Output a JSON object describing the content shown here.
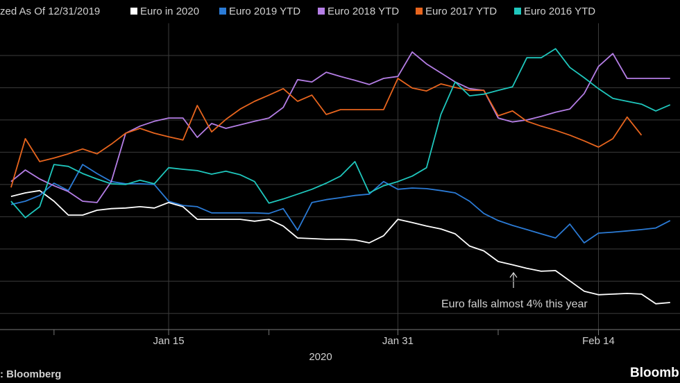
{
  "chart_data": {
    "type": "line",
    "subtitle": "zed As Of 12/31/2019",
    "xlabel": "2020",
    "annotation": "Euro falls almost 4% this year",
    "source": ": Bloomberg",
    "brand": "Bloomb",
    "grid": true,
    "x": [
      4,
      5,
      6,
      7,
      8,
      9,
      10,
      11,
      12,
      13,
      14,
      15,
      16,
      17,
      18,
      19,
      20,
      21,
      22,
      23,
      24,
      25,
      26,
      27,
      28,
      29,
      30,
      31,
      32,
      33,
      34,
      35,
      36,
      37,
      38,
      39,
      40,
      41,
      42,
      43,
      44,
      45,
      46,
      47,
      48,
      49,
      50
    ],
    "xlim": [
      3.23,
      50.69
    ],
    "xticks": [
      {
        "value": 15,
        "label": "Jan 15"
      },
      {
        "value": 31,
        "label": "Jan 31"
      },
      {
        "value": 45,
        "label": "Feb 14"
      }
    ],
    "xminorticks": [
      7,
      22,
      38
    ],
    "ylim": [
      95.5,
      105
    ],
    "yticks": [
      96,
      97,
      98,
      99,
      100,
      101,
      102,
      103,
      104
    ],
    "series": [
      {
        "name": "Euro in 2020",
        "color": "#ffffff",
        "values": [
          99.63,
          99.74,
          99.81,
          99.48,
          99.05,
          99.05,
          99.2,
          99.25,
          99.27,
          99.31,
          99.27,
          99.44,
          99.31,
          98.92,
          98.92,
          98.92,
          98.92,
          98.86,
          98.92,
          98.71,
          98.34,
          98.32,
          98.3,
          98.3,
          98.28,
          98.19,
          98.41,
          98.92,
          98.82,
          98.71,
          98.62,
          98.47,
          98.09,
          97.94,
          97.61,
          97.51,
          97.4,
          97.31,
          97.33,
          97.01,
          96.69,
          96.58,
          96.6,
          96.62,
          96.6,
          96.3,
          96.34
        ]
      },
      {
        "name": "Euro 2019 YTD",
        "color": "#2b7bd6",
        "values": [
          99.38,
          99.48,
          99.66,
          100.04,
          99.81,
          100.62,
          100.34,
          100.09,
          100.02,
          100.02,
          100.0,
          99.48,
          99.35,
          99.31,
          99.12,
          99.12,
          99.12,
          99.12,
          99.1,
          99.25,
          98.58,
          99.44,
          99.53,
          99.59,
          99.66,
          99.7,
          100.09,
          99.85,
          99.89,
          99.87,
          99.81,
          99.74,
          99.48,
          99.1,
          98.88,
          98.73,
          98.6,
          98.47,
          98.34,
          98.77,
          98.19,
          98.49,
          98.52,
          98.56,
          98.6,
          98.65,
          98.88
        ]
      },
      {
        "name": "Euro 2018 YTD",
        "color": "#b57ee6",
        "values": [
          100.09,
          100.45,
          100.17,
          99.96,
          99.78,
          99.48,
          99.44,
          100.09,
          101.59,
          101.81,
          101.96,
          102.06,
          102.06,
          101.46,
          101.89,
          101.74,
          101.85,
          101.96,
          102.06,
          102.39,
          103.25,
          103.18,
          103.48,
          103.35,
          103.23,
          103.1,
          103.29,
          103.35,
          104.11,
          103.74,
          103.46,
          103.18,
          102.97,
          102.92,
          102.06,
          101.94,
          102.0,
          102.11,
          102.24,
          102.34,
          102.82,
          103.66,
          104.06,
          103.29,
          103.29,
          103.29,
          103.29
        ]
      },
      {
        "name": "Euro 2017 YTD",
        "color": "#e8651e",
        "values": [
          99.91,
          101.42,
          100.71,
          100.82,
          100.95,
          101.1,
          100.95,
          101.25,
          101.59,
          101.74,
          101.59,
          101.48,
          101.38,
          102.45,
          101.63,
          102.02,
          102.34,
          102.58,
          102.77,
          102.97,
          102.58,
          102.77,
          102.17,
          102.32,
          102.32,
          102.32,
          102.32,
          103.29,
          102.99,
          102.9,
          103.12,
          103.01,
          102.92,
          102.92,
          102.13,
          102.28,
          101.96,
          101.81,
          101.68,
          101.53,
          101.35,
          101.16,
          101.42,
          102.09,
          101.53,
          null,
          null
        ]
      },
      {
        "name": "Euro 2016 YTD",
        "color": "#1fc7bd",
        "values": [
          99.48,
          98.97,
          99.31,
          100.62,
          100.56,
          100.34,
          100.17,
          100.02,
          100.0,
          100.13,
          100.02,
          100.52,
          100.47,
          100.43,
          100.32,
          100.41,
          100.3,
          100.09,
          99.42,
          99.55,
          99.7,
          99.85,
          100.04,
          100.26,
          100.71,
          99.74,
          99.96,
          100.09,
          100.26,
          100.52,
          102.17,
          103.18,
          102.75,
          102.8,
          102.92,
          103.03,
          103.93,
          103.93,
          104.21,
          103.63,
          103.31,
          102.97,
          102.67,
          102.58,
          102.49,
          102.28,
          102.47
        ]
      }
    ]
  }
}
